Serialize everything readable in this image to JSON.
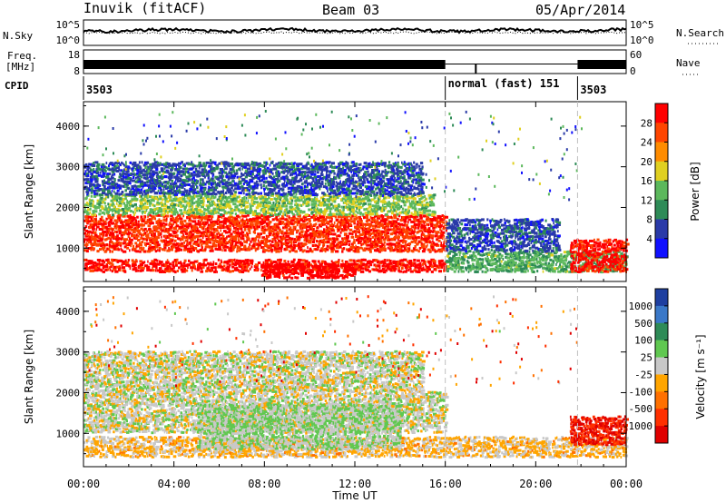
{
  "header": {
    "station": "Inuvik (fitACF)",
    "beam": "Beam 03",
    "date": "05/Apr/2014"
  },
  "top_panels": {
    "nsky_label": "N.Sky",
    "nsearch_label": "N.Search",
    "nsky_ticks": [
      "10^5",
      "10^0"
    ],
    "nsearch_ticks": [
      "10^5",
      "10^0"
    ],
    "freq_label_1": "Freq.",
    "freq_label_2": "[MHz]",
    "freq_ticks": [
      "18",
      "8"
    ],
    "nave_label": "Nave",
    "nave_ticks": [
      "60",
      "0"
    ],
    "cpid_label": "CPID",
    "cpid_segments": [
      {
        "label": "3503",
        "start": 0.0,
        "end": 16.0
      },
      {
        "label": "normal (fast) 151",
        "start": 16.0,
        "end": 21.85
      },
      {
        "label": "3503",
        "start": 21.85,
        "end": 24.0
      }
    ]
  },
  "x_axis": {
    "label": "Time UT",
    "ticks": [
      "00:00",
      "04:00",
      "08:00",
      "12:00",
      "16:00",
      "20:00",
      "00:00"
    ],
    "range_hours": [
      0,
      24
    ]
  },
  "power_panel": {
    "ylabel": "Slant Range [km]",
    "yticks": [
      "1000",
      "2000",
      "3000",
      "4000"
    ],
    "colorbar_label": "Power [dB]",
    "colorbar_ticks": [
      "4",
      "8",
      "12",
      "16",
      "20",
      "24",
      "28"
    ],
    "colors": [
      "#1010ff",
      "#2a3aa8",
      "#2e8b57",
      "#5cb85c",
      "#e0d020",
      "#ff8c00",
      "#ff4500",
      "#ff0000"
    ]
  },
  "velocity_panel": {
    "ylabel": "Slant Range [km]",
    "yticks": [
      "1000",
      "2000",
      "3000",
      "4000"
    ],
    "colorbar_label": "Velocity [m s⁻¹]",
    "colorbar_ticks": [
      "1000",
      "500",
      "100",
      "25",
      "-25",
      "-100",
      "-500",
      "-1000"
    ],
    "colors": [
      "#1e3fa0",
      "#3a78c8",
      "#2e8b57",
      "#60c850",
      "#c8c8c8",
      "#ffa500",
      "#ff7000",
      "#ff3000",
      "#e00000"
    ]
  },
  "chart_data": [
    {
      "type": "heatmap",
      "title": "Power [dB]",
      "xlabel": "Time UT",
      "ylabel": "Slant Range [km]",
      "x_range": [
        0,
        24
      ],
      "y_range": [
        180,
        4600
      ],
      "clim": [
        0,
        30
      ],
      "bands": [
        {
          "t0": 0.0,
          "t1": 16.0,
          "r0": 400,
          "r1": 700,
          "value": 28
        },
        {
          "t0": 0.0,
          "t1": 16.0,
          "r0": 900,
          "r1": 1800,
          "value": 26
        },
        {
          "t0": 0.0,
          "t1": 15.5,
          "r0": 1800,
          "r1": 2300,
          "value": 14
        },
        {
          "t0": 0.0,
          "t1": 15.0,
          "r0": 2300,
          "r1": 3100,
          "value": 6
        },
        {
          "t0": 7.8,
          "t1": 12.0,
          "r0": 250,
          "r1": 600,
          "value": 29
        },
        {
          "t0": 16.0,
          "t1": 24.0,
          "r0": 400,
          "r1": 900,
          "value": 12
        },
        {
          "t0": 16.0,
          "t1": 21.0,
          "r0": 900,
          "r1": 1700,
          "value": 6
        },
        {
          "t0": 21.5,
          "t1": 24.0,
          "r0": 400,
          "r1": 1200,
          "value": 28
        }
      ]
    },
    {
      "type": "heatmap",
      "title": "Velocity [m s⁻¹]",
      "xlabel": "Time UT",
      "ylabel": "Slant Range [km]",
      "x_range": [
        0,
        24
      ],
      "y_range": [
        180,
        4600
      ],
      "clim": [
        -1000,
        1000
      ],
      "bands": [
        {
          "t0": 0.0,
          "t1": 16.0,
          "r0": 400,
          "r1": 900,
          "value": -150
        },
        {
          "t0": 0.0,
          "t1": 16.0,
          "r0": 1000,
          "r1": 2000,
          "value": 0
        },
        {
          "t0": 0.0,
          "t1": 15.0,
          "r0": 2000,
          "r1": 3000,
          "value": 0
        },
        {
          "t0": 5.0,
          "t1": 14.0,
          "r0": 600,
          "r1": 1700,
          "value": 100
        },
        {
          "t0": 16.0,
          "t1": 24.0,
          "r0": 400,
          "r1": 900,
          "value": -150
        },
        {
          "t0": 21.5,
          "t1": 24.0,
          "r0": 700,
          "r1": 1400,
          "value": -800
        }
      ]
    }
  ]
}
